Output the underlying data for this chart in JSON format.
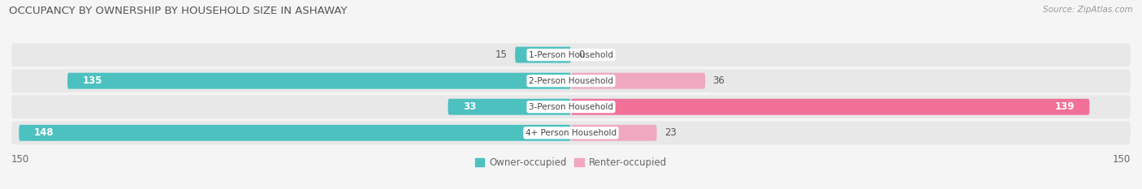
{
  "title": "OCCUPANCY BY OWNERSHIP BY HOUSEHOLD SIZE IN ASHAWAY",
  "source": "Source: ZipAtlas.com",
  "categories": [
    "1-Person Household",
    "2-Person Household",
    "3-Person Household",
    "4+ Person Household"
  ],
  "owner_values": [
    15,
    135,
    33,
    148
  ],
  "renter_values": [
    0,
    36,
    139,
    23
  ],
  "owner_color": "#4dc0c0",
  "renter_color": "#f07098",
  "renter_color_light": "#f0a8c0",
  "bg_color": "#f5f5f5",
  "bar_bg_color": "#e8e8e8",
  "xlim": 150,
  "legend_labels": [
    "Owner-occupied",
    "Renter-occupied"
  ],
  "bar_height": 0.62,
  "label_fontsize": 8.5,
  "title_fontsize": 9.5
}
